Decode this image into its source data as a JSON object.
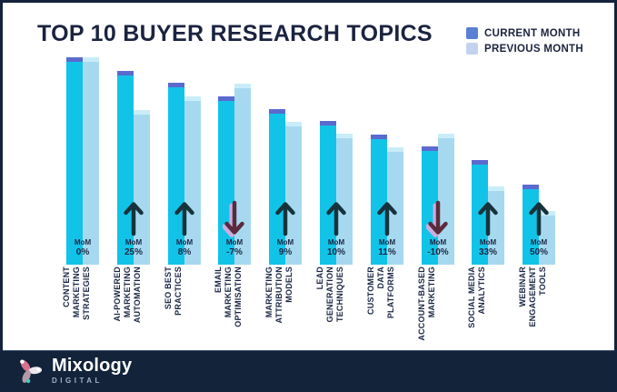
{
  "page": {
    "title": "TOP 10 BUYER RESEARCH TOPICS"
  },
  "legend": {
    "items": [
      {
        "label": "CURRENT MONTH",
        "color": "#5C7FD6"
      },
      {
        "label": "PREVIOUS MONTH",
        "color": "#C3D3EE"
      }
    ]
  },
  "chart_data": {
    "type": "bar",
    "title": "TOP 10 BUYER RESEARCH TOPICS",
    "categories": [
      "CONTENT MARKETING STRATEGIES",
      "AI-POWERED MARKETING AUTOMATION",
      "SEO BEST PRACTICES",
      "EMAIL MARKETING OPTIMISATION",
      "MARKETING ATTRIBUTION MODELS",
      "LEAD GENERATION TECHNIQUES",
      "CUSTOMER DATA PLATFORMS",
      "ACCOUNT-BASED MARKETING",
      "SOCIAL MEDIA ANALYTICS",
      "WEBINAR ENGAGEMENT TOOLS"
    ],
    "categories_display": [
      "CONTENT\nMARKETING\nSTRATEGIES",
      "AI-POWERED\nMARKETING\nAUTOMATION",
      "SEO BEST\nPRACTICES",
      "EMAIL\nMARKETING\nOPTIMISATION",
      "MARKETING\nATTRIBUTION\nMODELS",
      "LEAD\nGENERATION\nTECHNIQUES",
      "CUSTOMER\nDATA\nPLATFORMS",
      "ACCOUNT-BASED\nMARKETING",
      "SOCIAL MEDIA\nANALYTICS",
      "WEBINAR\nENGAGEMENT\nTOOLS"
    ],
    "series": [
      {
        "name": "CURRENT MONTH",
        "values": [
          100,
          93.4,
          87.7,
          81.1,
          75.0,
          69.3,
          62.7,
          57.0,
          50.4,
          38.6
        ]
      },
      {
        "name": "PREVIOUS MONTH",
        "values": [
          100,
          74.7,
          81.2,
          87.2,
          68.8,
          63.0,
          56.5,
          63.3,
          37.9,
          25.7
        ]
      }
    ],
    "mom_prefix": "MoM",
    "mom_change": [
      "0%",
      "25%",
      "8%",
      "-7%",
      "9%",
      "10%",
      "11%",
      "-10%",
      "33%",
      "50%"
    ],
    "mom_direction": [
      "flat",
      "up",
      "up",
      "down",
      "up",
      "up",
      "up",
      "down",
      "up",
      "up"
    ],
    "ylim": [
      0,
      105
    ],
    "grid": false,
    "legend_position": "top-right"
  },
  "footer": {
    "brand": "Mixology",
    "brand_sub": "DIGITAL"
  },
  "colors": {
    "bar_current": "#12C3E8",
    "bar_current_cap": "#5A6ACF",
    "bar_previous": "#A6D9EF",
    "bar_previous_cap": "#C9EDF8",
    "arrow_up": "#16333C",
    "arrow_down": "#5A2B3C",
    "arrow_down_glow": "#EDA9DE",
    "text_navy": "#1B2744",
    "footer_bg": "#12233A"
  }
}
